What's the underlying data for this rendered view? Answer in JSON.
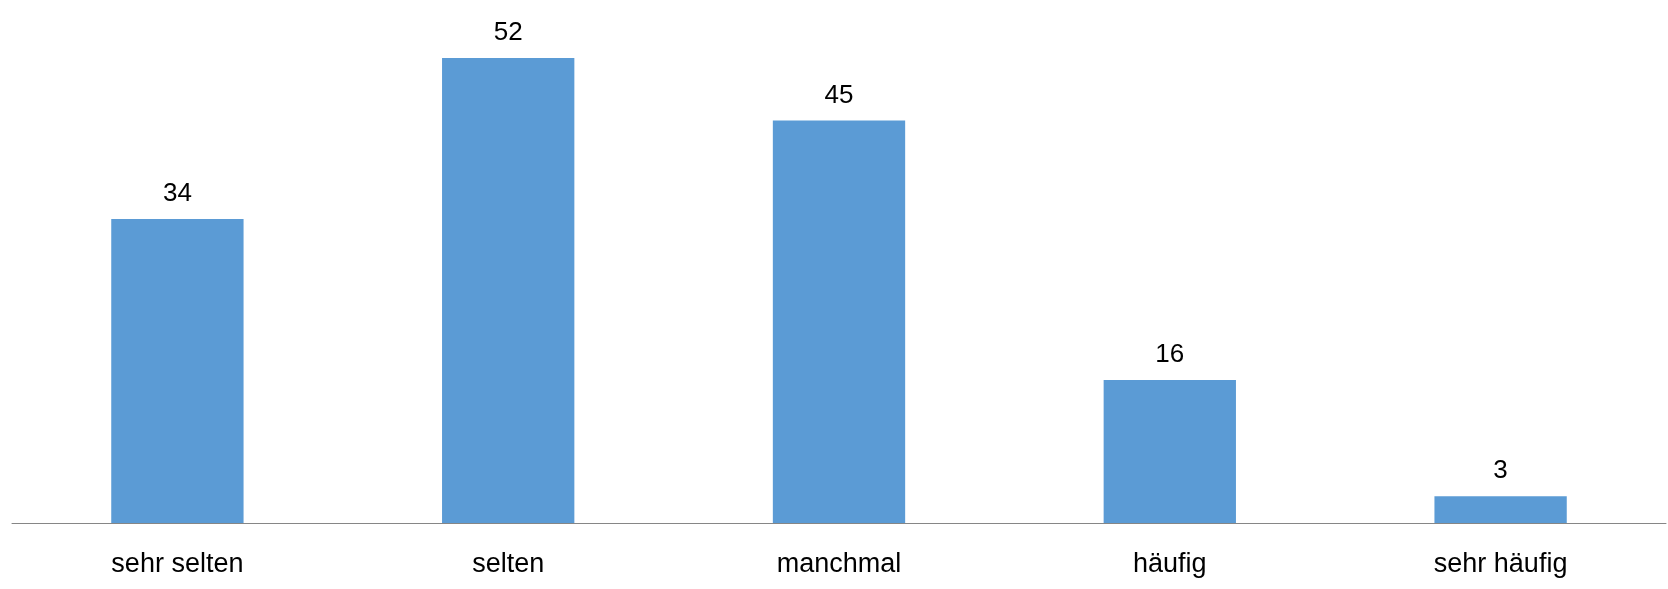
{
  "chart_data": {
    "type": "bar",
    "categories": [
      "sehr selten",
      "selten",
      "manchmal",
      "häufig",
      "sehr häufig"
    ],
    "values": [
      34,
      52,
      45,
      16,
      3
    ],
    "color": "#5b9bd5",
    "data_labels": true,
    "tick_labels": "x"
  }
}
